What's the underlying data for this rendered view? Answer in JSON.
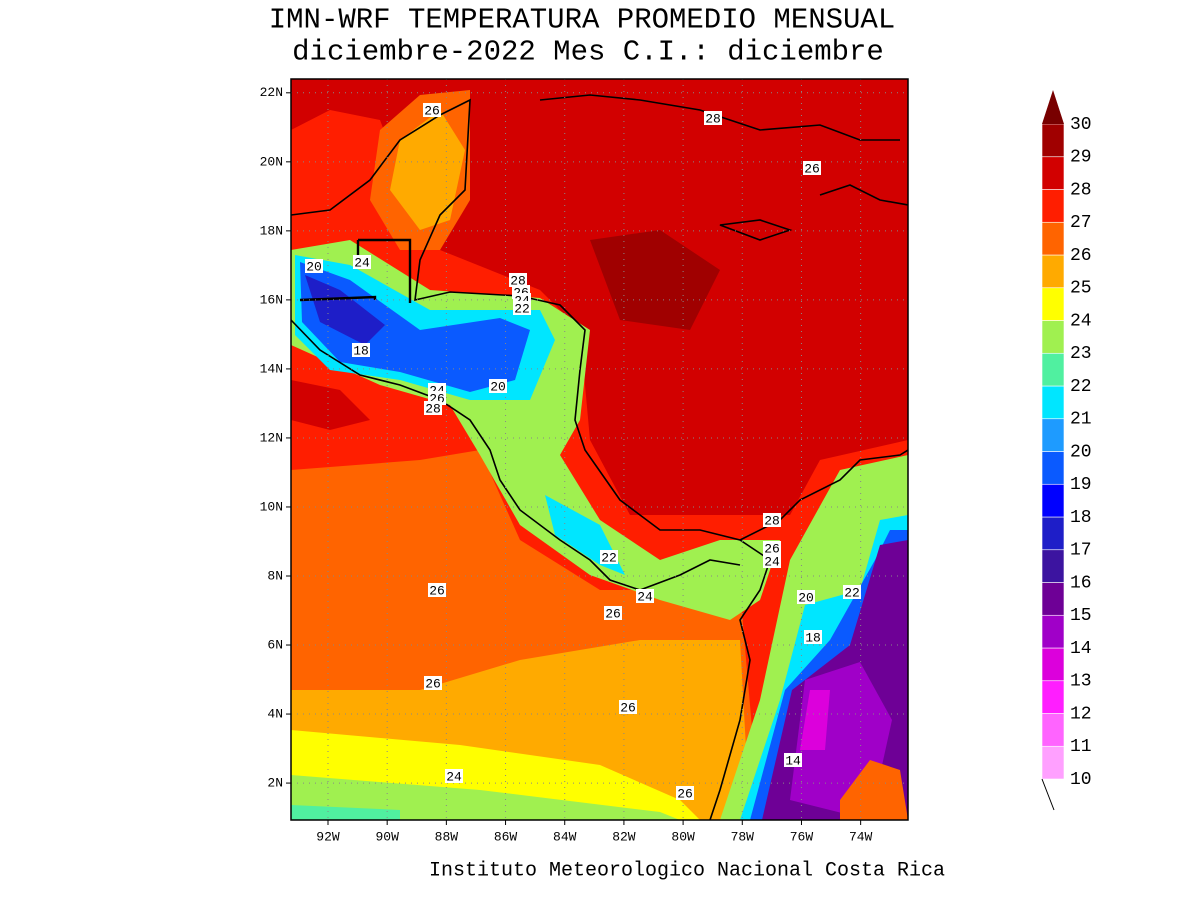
{
  "title": [
    "IMN-WRF  TEMPERATURA PROMEDIO MENSUAL",
    "diciembre-2022 Mes C.I.: diciembre"
  ],
  "footer": "Instituto Meteorologico Nacional Costa Rica",
  "map": {
    "xlim": [
      -93.25,
      -72.4
    ],
    "ylim": [
      0.93,
      22.4
    ],
    "xticks": [
      {
        "value": -92,
        "label": "92W"
      },
      {
        "value": -90,
        "label": "90W"
      },
      {
        "value": -88,
        "label": "88W"
      },
      {
        "value": -86,
        "label": "86W"
      },
      {
        "value": -84,
        "label": "84W"
      },
      {
        "value": -82,
        "label": "82W"
      },
      {
        "value": -80,
        "label": "80W"
      },
      {
        "value": -78,
        "label": "78W"
      },
      {
        "value": -76,
        "label": "76W"
      },
      {
        "value": -74,
        "label": "74W"
      }
    ],
    "yticks": [
      {
        "value": 2,
        "label": "2N"
      },
      {
        "value": 4,
        "label": "4N"
      },
      {
        "value": 6,
        "label": "6N"
      },
      {
        "value": 8,
        "label": "8N"
      },
      {
        "value": 10,
        "label": "10N"
      },
      {
        "value": 12,
        "label": "12N"
      },
      {
        "value": 14,
        "label": "14N"
      },
      {
        "value": 16,
        "label": "16N"
      },
      {
        "value": 18,
        "label": "18N"
      },
      {
        "value": 20,
        "label": "20N"
      },
      {
        "value": 22,
        "label": "22N"
      }
    ],
    "grid": true,
    "contour_labels": [
      26,
      28,
      26,
      20,
      24,
      28,
      26,
      24,
      22,
      18,
      20,
      24,
      26,
      28,
      28,
      26,
      24,
      22,
      20,
      22,
      24,
      26,
      18,
      26,
      26,
      26,
      14,
      24,
      26
    ]
  },
  "colorbar": {
    "levels": [
      10,
      11,
      12,
      13,
      14,
      15,
      16,
      17,
      18,
      19,
      20,
      21,
      22,
      23,
      24,
      25,
      26,
      27,
      28,
      29,
      30
    ],
    "colors": [
      "#ffa0ff",
      "#ff64ff",
      "#ff1eff",
      "#dc00dc",
      "#a000c8",
      "#6e0096",
      "#3c14a0",
      "#1e1ec8",
      "#0000ff",
      "#0a5aff",
      "#1e9bff",
      "#00e6ff",
      "#50f0a0",
      "#a0f050",
      "#ffff00",
      "#ffaa00",
      "#ff6400",
      "#ff1e00",
      "#d20000",
      "#a00000"
    ],
    "over_color": "#780000"
  }
}
